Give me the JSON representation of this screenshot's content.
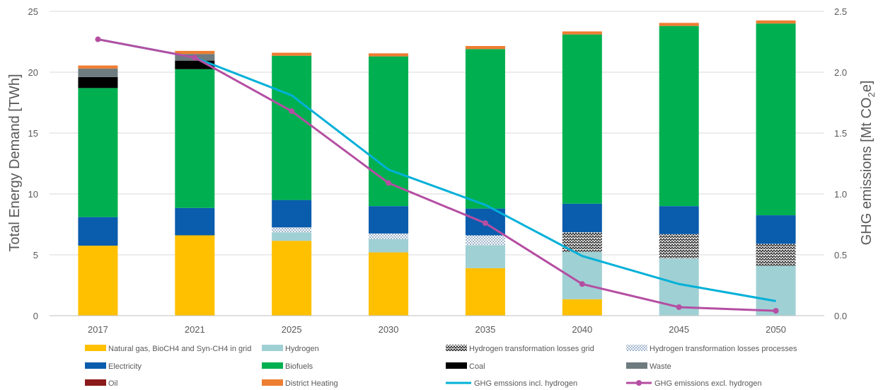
{
  "chart_data": {
    "type": "bar",
    "stacked": true,
    "categories": [
      "2017",
      "2021",
      "2025",
      "2030",
      "2035",
      "2040",
      "2045",
      "2050"
    ],
    "ylabel": "Total Energy Demand [TWh]",
    "ylabel2_prefix": "GHG emissions [Mt CO",
    "ylabel2_sub": "2",
    "ylabel2_suffix": "e]",
    "ylim": [
      0,
      25
    ],
    "yticks": [
      "0",
      "5",
      "10",
      "15",
      "20",
      "25"
    ],
    "ylim2": [
      0,
      2.5
    ],
    "yticks2": [
      "0.0",
      "0.5",
      "1.0",
      "1.5",
      "2.0",
      "2.5"
    ],
    "grid": true,
    "legend_position": "bottom",
    "series": [
      {
        "name": "Natural gas, BioCH4 and Syn-CH4 in grid",
        "color": "#FFC000",
        "pattern": "solid",
        "values": [
          5.75,
          6.6,
          6.15,
          5.2,
          3.9,
          1.35,
          0,
          0
        ]
      },
      {
        "name": "Hydrogen",
        "color": "#9FD0D4",
        "pattern": "solid",
        "values": [
          0,
          0,
          0.7,
          1.1,
          1.9,
          3.9,
          4.7,
          4.1
        ]
      },
      {
        "name": "Hydrogen transformation losses grid",
        "color": "#262626",
        "pattern": "zigzag",
        "values": [
          0,
          0,
          0,
          0,
          0,
          1.6,
          2.0,
          1.8
        ]
      },
      {
        "name": "Hydrogen transformation losses processes",
        "color": "#5B7FA8",
        "pattern": "dots",
        "values": [
          0,
          0,
          0.4,
          0.45,
          0.8,
          0,
          0,
          0
        ]
      },
      {
        "name": "Electricity",
        "color": "#0A5CAD",
        "pattern": "solid",
        "values": [
          2.35,
          2.25,
          2.25,
          2.25,
          2.2,
          2.35,
          2.3,
          2.35
        ]
      },
      {
        "name": "Biofuels",
        "color": "#00B050",
        "pattern": "solid",
        "values": [
          10.6,
          11.4,
          11.85,
          12.3,
          13.1,
          13.9,
          14.8,
          15.75
        ]
      },
      {
        "name": "Coal",
        "color": "#000000",
        "pattern": "solid",
        "values": [
          0.9,
          0.7,
          0,
          0,
          0,
          0,
          0,
          0
        ]
      },
      {
        "name": "Waste",
        "color": "#6E7B7F",
        "pattern": "solid",
        "values": [
          0.7,
          0.55,
          0,
          0,
          0,
          0,
          0,
          0
        ]
      },
      {
        "name": "Oil",
        "color": "#8B1A1A",
        "pattern": "solid",
        "values": [
          0,
          0,
          0,
          0,
          0,
          0,
          0,
          0
        ]
      },
      {
        "name": "District Heating",
        "color": "#ED7D31",
        "pattern": "solid",
        "values": [
          0.25,
          0.25,
          0.25,
          0.25,
          0.25,
          0.25,
          0.25,
          0.25
        ]
      }
    ],
    "lines": [
      {
        "name": "GHG emssions incl. hydrogen",
        "color": "#00B0D8",
        "marker": false,
        "axis": "right",
        "values": [
          2.27,
          2.12,
          1.81,
          1.2,
          0.91,
          0.49,
          0.26,
          0.12
        ]
      },
      {
        "name": "GHG emissions excl. hydrogen",
        "color": "#B54EA2",
        "marker": true,
        "axis": "right",
        "values": [
          2.27,
          2.12,
          1.68,
          1.09,
          0.76,
          0.26,
          0.07,
          0.04
        ]
      }
    ],
    "legend_order": [
      "Natural gas, BioCH4 and Syn-CH4 in grid",
      "Hydrogen",
      "Hydrogen transformation losses grid",
      "Hydrogen transformation losses processes",
      "Electricity",
      "Biofuels",
      "Coal",
      "Waste",
      "Oil",
      "District Heating",
      "GHG emssions incl. hydrogen",
      "GHG emissions excl. hydrogen"
    ]
  }
}
